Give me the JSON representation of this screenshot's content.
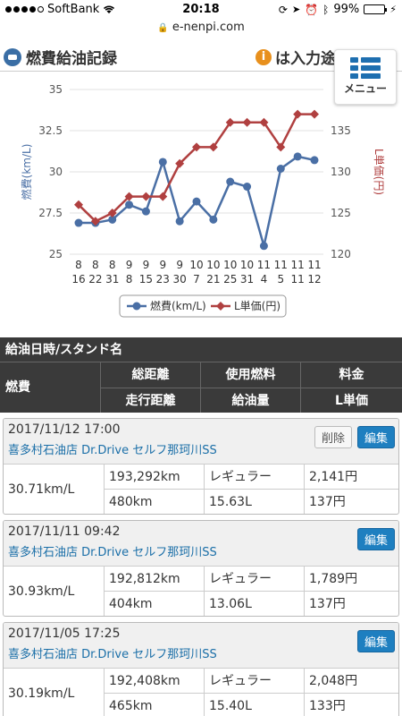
{
  "status": {
    "carrier": "SoftBank",
    "time": "20:18",
    "battery": "99%"
  },
  "url": "e-nenpi.com",
  "header": {
    "title": "燃費給油記録",
    "notice": "は入力途",
    "menu_label": "メニュー"
  },
  "chart_data": {
    "type": "line",
    "categories": [
      "8/16",
      "8/22",
      "8/31",
      "9/8",
      "9/15",
      "9/23",
      "9/30",
      "10/7",
      "10/21",
      "10/25",
      "10/31",
      "11/4",
      "11/5",
      "11/11",
      "11/12"
    ],
    "cat_top": [
      "8",
      "8",
      "8",
      "9",
      "9",
      "9",
      "9",
      "10",
      "10",
      "10",
      "10",
      "11",
      "11",
      "11",
      "11"
    ],
    "cat_bottom": [
      "16",
      "22",
      "31",
      "8",
      "15",
      "23",
      "30",
      "7",
      "21",
      "25",
      "31",
      "4",
      "5",
      "11",
      "12"
    ],
    "left_axis": {
      "label": "燃費(km/L)",
      "ylim": [
        25,
        35
      ],
      "ticks": [
        "25",
        "27.5",
        "30",
        "32.5",
        "35"
      ]
    },
    "right_axis": {
      "label": "L単価(円)",
      "ylim": [
        120,
        140
      ],
      "ticks": [
        "120",
        "125",
        "130",
        "135"
      ]
    },
    "series": [
      {
        "name": "燃費(km/L)",
        "axis": "left",
        "color": "#4a6fa5",
        "values": [
          26.9,
          26.9,
          27.1,
          28.0,
          27.6,
          30.6,
          27.0,
          28.2,
          27.1,
          29.4,
          29.1,
          25.5,
          30.19,
          30.93,
          30.71
        ]
      },
      {
        "name": "L単価(円)",
        "axis": "right",
        "color": "#b04040",
        "values": [
          126,
          124,
          125,
          127,
          127,
          127,
          131,
          133,
          133,
          136,
          136,
          136,
          133,
          137,
          137
        ]
      }
    ],
    "legend": [
      "燃費(km/L)",
      "L単価(円)"
    ],
    "legend_position": "bottom",
    "grid": true
  },
  "table": {
    "title": "給油日時/スタンド名",
    "h_fuel_eff": "燃費",
    "h_total": "総距離",
    "h_fuel": "使用燃料",
    "h_price": "料金",
    "h_run": "走行距離",
    "h_amount": "給油量",
    "h_unit": "L単価",
    "delete_label": "削除",
    "edit_label": "編集",
    "records": [
      {
        "datetime": "2017/11/12 17:00",
        "station": "喜多村石油店 Dr.Drive セルフ那珂川SS",
        "fuel_eff": "30.71km/L",
        "total": "193,292km",
        "fuel": "レギュラー",
        "price": "2,141円",
        "run": "480km",
        "amount": "15.63L",
        "unit": "137円"
      },
      {
        "datetime": "2017/11/11 09:42",
        "station": "喜多村石油店 Dr.Drive セルフ那珂川SS",
        "fuel_eff": "30.93km/L",
        "total": "192,812km",
        "fuel": "レギュラー",
        "price": "1,789円",
        "run": "404km",
        "amount": "13.06L",
        "unit": "137円"
      },
      {
        "datetime": "2017/11/05 17:25",
        "station": "喜多村石油店 Dr.Drive セルフ那珂川SS",
        "fuel_eff": "30.19km/L",
        "total": "192,408km",
        "fuel": "レギュラー",
        "price": "2,048円",
        "run": "465km",
        "amount": "15.40L",
        "unit": "133円"
      }
    ]
  }
}
